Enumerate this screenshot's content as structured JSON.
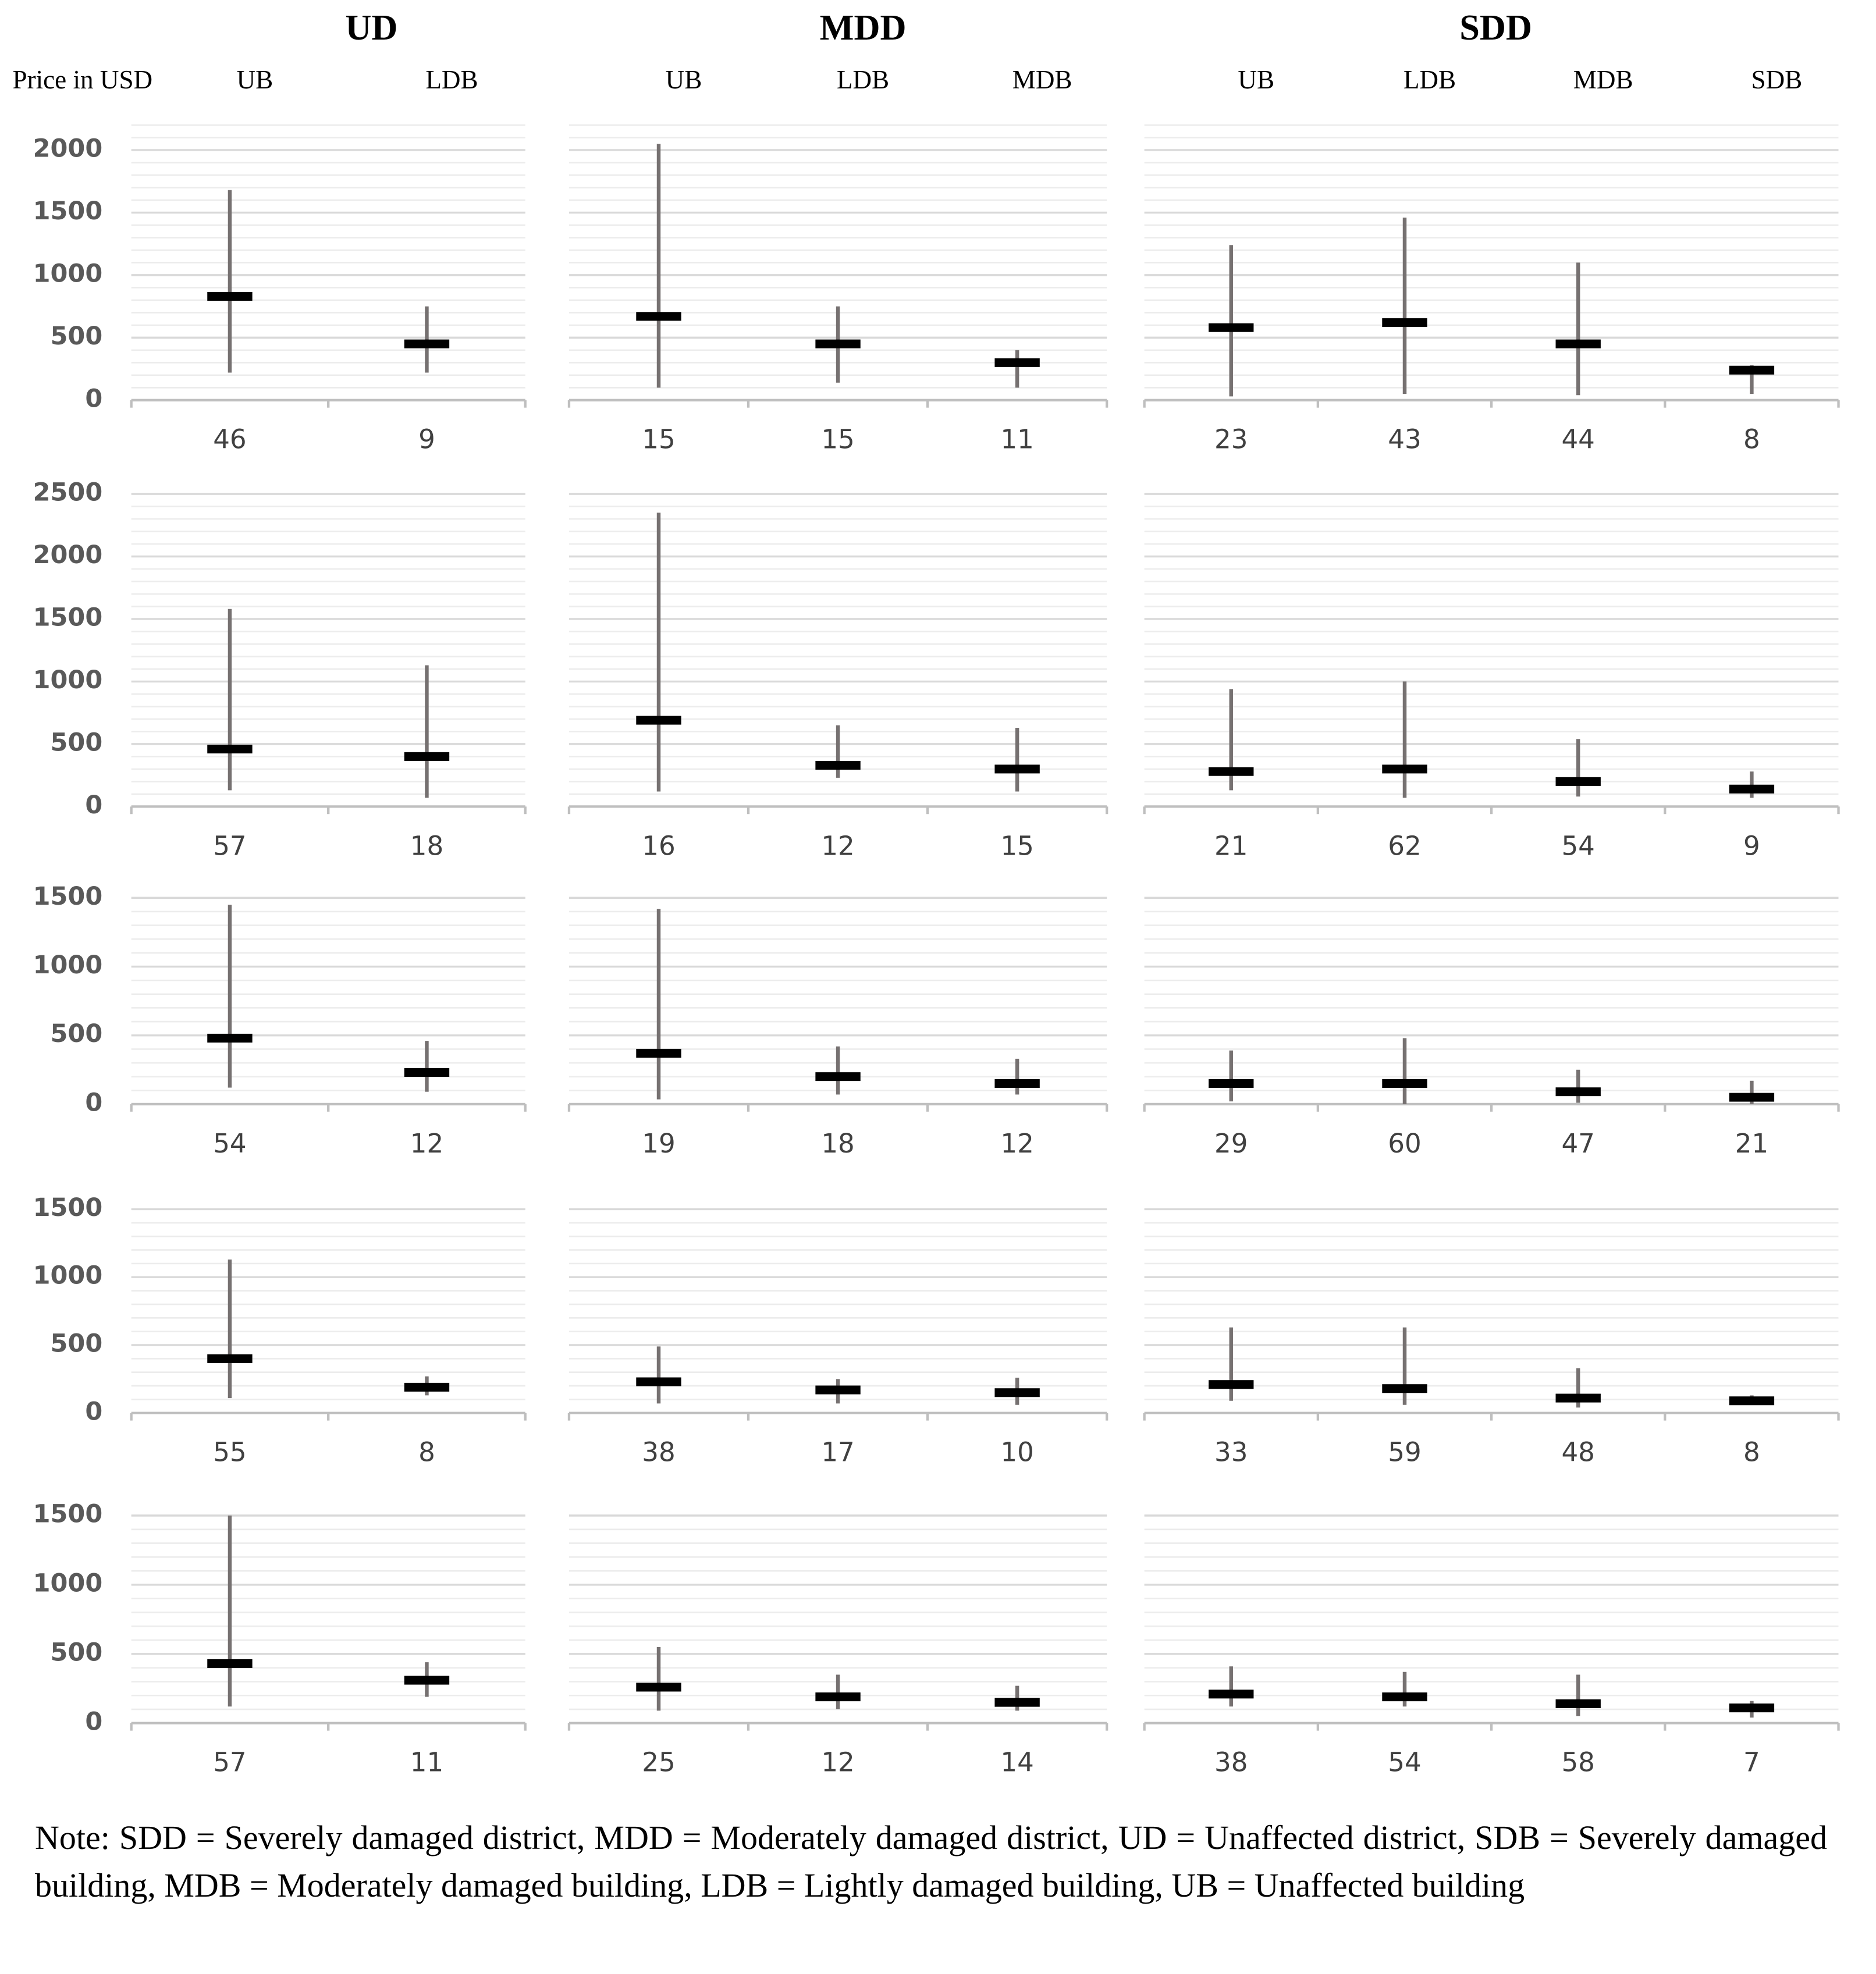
{
  "header": {
    "y_label": "Price in USD",
    "columns": [
      {
        "title": "UD",
        "groups": [
          "UB",
          "LDB"
        ]
      },
      {
        "title": "MDD",
        "groups": [
          "UB",
          "LDB",
          "MDB"
        ]
      },
      {
        "title": "SDD",
        "groups": [
          "UB",
          "LDB",
          "MDB",
          "SDB"
        ]
      }
    ]
  },
  "chart_data": [
    {
      "type": "range",
      "categories": [
        "46",
        "9"
      ],
      "values": [
        830,
        450
      ],
      "lows": [
        220,
        220
      ],
      "highs": [
        1680,
        750
      ],
      "ylim": [
        0,
        2200
      ],
      "yticks": [
        0,
        500,
        1000,
        1500,
        2000
      ],
      "show_ytick_labels": true,
      "grid": true,
      "color": "#000000",
      "range_color": "#767171"
    },
    {
      "type": "range",
      "categories": [
        "15",
        "15",
        "11"
      ],
      "values": [
        670,
        450,
        300
      ],
      "lows": [
        100,
        140,
        100
      ],
      "highs": [
        2050,
        750,
        400
      ],
      "ylim": [
        0,
        2200
      ],
      "yticks": [
        0,
        500,
        1000,
        1500,
        2000
      ],
      "show_ytick_labels": false,
      "grid": true,
      "color": "#000000",
      "range_color": "#767171"
    },
    {
      "type": "range",
      "categories": [
        "23",
        "43",
        "44",
        "8"
      ],
      "values": [
        580,
        620,
        450,
        240
      ],
      "lows": [
        30,
        50,
        40,
        50
      ],
      "highs": [
        1240,
        1460,
        1100,
        280
      ],
      "ylim": [
        0,
        2200
      ],
      "yticks": [
        0,
        500,
        1000,
        1500,
        2000
      ],
      "show_ytick_labels": false,
      "grid": true,
      "color": "#000000",
      "range_color": "#767171"
    },
    {
      "type": "range",
      "categories": [
        "57",
        "18"
      ],
      "values": [
        460,
        400
      ],
      "lows": [
        130,
        70
      ],
      "highs": [
        1580,
        1130
      ],
      "ylim": [
        0,
        2500
      ],
      "yticks": [
        0,
        500,
        1000,
        1500,
        2000,
        2500
      ],
      "show_ytick_labels": true,
      "grid": true,
      "color": "#000000",
      "range_color": "#767171"
    },
    {
      "type": "range",
      "categories": [
        "16",
        "12",
        "15"
      ],
      "values": [
        690,
        330,
        300
      ],
      "lows": [
        120,
        230,
        120
      ],
      "highs": [
        2350,
        650,
        630
      ],
      "ylim": [
        0,
        2500
      ],
      "yticks": [
        0,
        500,
        1000,
        1500,
        2000,
        2500
      ],
      "show_ytick_labels": false,
      "grid": true,
      "color": "#000000",
      "range_color": "#767171"
    },
    {
      "type": "range",
      "categories": [
        "21",
        "62",
        "54",
        "9"
      ],
      "values": [
        280,
        300,
        200,
        140
      ],
      "lows": [
        130,
        70,
        80,
        70
      ],
      "highs": [
        940,
        1000,
        540,
        280
      ],
      "ylim": [
        0,
        2500
      ],
      "yticks": [
        0,
        500,
        1000,
        1500,
        2000,
        2500
      ],
      "show_ytick_labels": false,
      "grid": true,
      "color": "#000000",
      "range_color": "#767171"
    },
    {
      "type": "range",
      "categories": [
        "54",
        "12"
      ],
      "values": [
        480,
        230
      ],
      "lows": [
        120,
        90
      ],
      "highs": [
        1450,
        460
      ],
      "ylim": [
        0,
        1500
      ],
      "yticks": [
        0,
        500,
        1000,
        1500
      ],
      "show_ytick_labels": true,
      "grid": true,
      "color": "#000000",
      "range_color": "#767171"
    },
    {
      "type": "range",
      "categories": [
        "19",
        "18",
        "12"
      ],
      "values": [
        370,
        200,
        150
      ],
      "lows": [
        35,
        70,
        70
      ],
      "highs": [
        1420,
        420,
        330
      ],
      "ylim": [
        0,
        1500
      ],
      "yticks": [
        0,
        500,
        1000,
        1500
      ],
      "show_ytick_labels": false,
      "grid": true,
      "color": "#000000",
      "range_color": "#767171"
    },
    {
      "type": "range",
      "categories": [
        "29",
        "60",
        "47",
        "21"
      ],
      "values": [
        150,
        150,
        90,
        50
      ],
      "lows": [
        20,
        0,
        10,
        0
      ],
      "highs": [
        390,
        480,
        250,
        170
      ],
      "ylim": [
        0,
        1500
      ],
      "yticks": [
        0,
        500,
        1000,
        1500
      ],
      "show_ytick_labels": false,
      "grid": true,
      "color": "#000000",
      "range_color": "#767171"
    },
    {
      "type": "range",
      "categories": [
        "55",
        "8"
      ],
      "values": [
        400,
        190
      ],
      "lows": [
        110,
        130
      ],
      "highs": [
        1130,
        270
      ],
      "ylim": [
        0,
        1500
      ],
      "yticks": [
        0,
        500,
        1000,
        1500
      ],
      "show_ytick_labels": true,
      "grid": true,
      "color": "#000000",
      "range_color": "#767171"
    },
    {
      "type": "range",
      "categories": [
        "38",
        "17",
        "10"
      ],
      "values": [
        230,
        170,
        150
      ],
      "lows": [
        70,
        70,
        60
      ],
      "highs": [
        490,
        250,
        260
      ],
      "ylim": [
        0,
        1500
      ],
      "yticks": [
        0,
        500,
        1000,
        1500
      ],
      "show_ytick_labels": false,
      "grid": true,
      "color": "#000000",
      "range_color": "#767171"
    },
    {
      "type": "range",
      "categories": [
        "33",
        "59",
        "48",
        "8"
      ],
      "values": [
        210,
        180,
        110,
        90
      ],
      "lows": [
        90,
        60,
        40,
        60
      ],
      "highs": [
        630,
        630,
        330,
        130
      ],
      "ylim": [
        0,
        1500
      ],
      "yticks": [
        0,
        500,
        1000,
        1500
      ],
      "show_ytick_labels": false,
      "grid": true,
      "color": "#000000",
      "range_color": "#767171"
    },
    {
      "type": "range",
      "categories": [
        "57",
        "11"
      ],
      "values": [
        430,
        310
      ],
      "lows": [
        120,
        190
      ],
      "highs": [
        1500,
        440
      ],
      "ylim": [
        0,
        1500
      ],
      "yticks": [
        0,
        500,
        1000,
        1500
      ],
      "show_ytick_labels": true,
      "grid": true,
      "color": "#000000",
      "range_color": "#767171"
    },
    {
      "type": "range",
      "categories": [
        "25",
        "12",
        "14"
      ],
      "values": [
        260,
        190,
        150
      ],
      "lows": [
        90,
        100,
        90
      ],
      "highs": [
        550,
        350,
        270
      ],
      "ylim": [
        0,
        1500
      ],
      "yticks": [
        0,
        500,
        1000,
        1500
      ],
      "show_ytick_labels": false,
      "grid": true,
      "color": "#000000",
      "range_color": "#767171"
    },
    {
      "type": "range",
      "categories": [
        "38",
        "54",
        "58",
        "7"
      ],
      "values": [
        210,
        190,
        140,
        110
      ],
      "lows": [
        120,
        120,
        50,
        40
      ],
      "highs": [
        410,
        370,
        350,
        160
      ],
      "ylim": [
        0,
        1500
      ],
      "yticks": [
        0,
        500,
        1000,
        1500
      ],
      "show_ytick_labels": false,
      "grid": true,
      "color": "#000000",
      "range_color": "#767171"
    }
  ],
  "note": "Note: SDD = Severely damaged district, MDD = Moderately damaged district, UD = Unaffected district, SDB = Severely damaged building, MDB = Moderately damaged building, LDB = Lightly damaged building, UB = Unaffected building"
}
